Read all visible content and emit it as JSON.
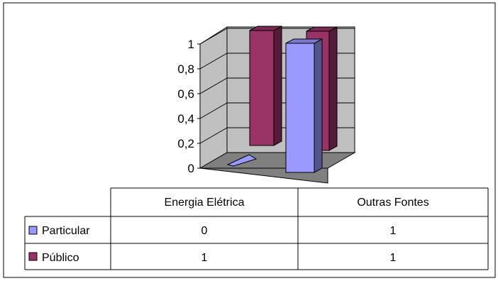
{
  "chart_data": {
    "type": "bar",
    "variant": "3d-clustered-with-data-table",
    "categories": [
      "Energia Elétrica",
      "Outras Fontes"
    ],
    "series": [
      {
        "name": "Particular",
        "values": [
          0,
          1
        ],
        "color": "#9999ff"
      },
      {
        "name": "Público",
        "values": [
          1,
          1
        ],
        "color": "#993366"
      }
    ],
    "ylim": [
      0,
      1
    ],
    "yticks": [
      "0",
      "0,2",
      "0,4",
      "0,6",
      "0,8",
      "1"
    ],
    "grid": true,
    "legend": "data-table"
  }
}
